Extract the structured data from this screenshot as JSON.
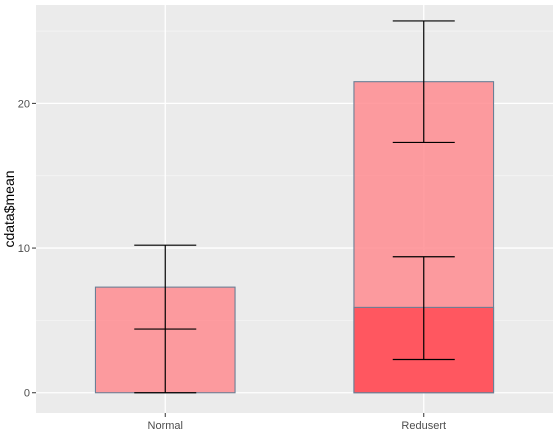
{
  "chart_data": {
    "type": "bar",
    "title": "",
    "xlabel": "",
    "ylabel": "cdata$mean",
    "categories": [
      "Normal",
      "Redusert"
    ],
    "ylim": [
      -1.4,
      26.8
    ],
    "yticks": [
      0,
      10,
      20
    ],
    "grid": true,
    "legend": "none",
    "bars": [
      {
        "category": "Normal",
        "value": 7.3,
        "color": "#ff8c91",
        "opacity": 0.85
      },
      {
        "category": "Redusert",
        "value": 21.5,
        "color": "#ff8c91",
        "opacity": 0.85
      },
      {
        "category": "Redusert",
        "value": 5.9,
        "color": "#ff4b55",
        "opacity": 0.85
      }
    ],
    "error_bars": [
      {
        "category": "Normal",
        "ymin": 0.0,
        "ymax": 10.2,
        "y": 4.4
      },
      {
        "category": "Redusert",
        "ymin": 17.3,
        "ymax": 25.7,
        "y": null
      },
      {
        "category": "Redusert",
        "ymin": 2.3,
        "ymax": 9.4,
        "y": null
      }
    ],
    "colors": {
      "panel_background": "#ebebeb",
      "grid_major": "#ffffff",
      "grid_minor": "#f5f5f5",
      "bar_outline": "#6b7f95",
      "error_bar": "#000000"
    }
  }
}
